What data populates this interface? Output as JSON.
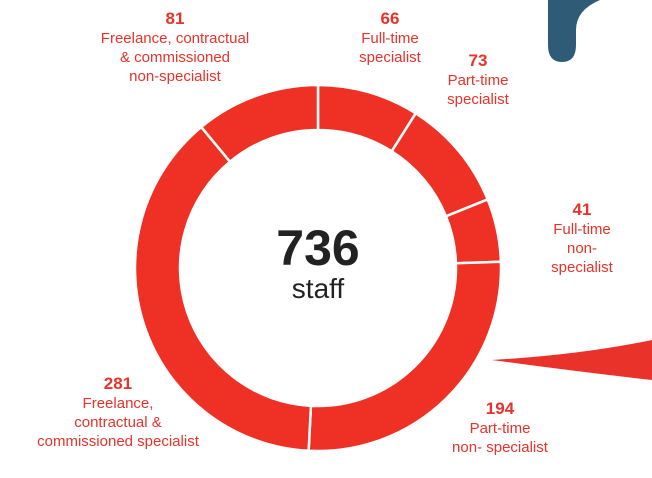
{
  "chart_data": {
    "type": "pie",
    "donut": true,
    "color": "#ee3124",
    "categories": [
      "Full-time\nspecialist",
      "Part-time\nspecialist",
      "Full-time\nnon- specialist",
      "Part-time\nnon- specialist",
      "Freelance,\ncontractual &\ncommissioned specialist",
      "Freelance, contractual\n& commissioned\nnon-specialist"
    ],
    "values": [
      66,
      73,
      41,
      194,
      281,
      81
    ],
    "center_value": 736,
    "center_label": "staff"
  }
}
